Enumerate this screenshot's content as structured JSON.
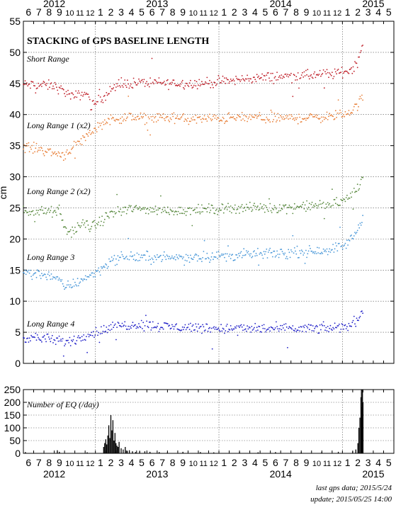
{
  "chart_data": [
    {
      "type": "scatter",
      "title": "STACKING of GPS BASELINE LENGTH",
      "ylabel": "cm",
      "ylim": [
        0,
        55
      ],
      "y_ticks": [
        0,
        5,
        10,
        15,
        20,
        25,
        30,
        35,
        40,
        45,
        50,
        55
      ],
      "x_range": [
        "2012-05",
        "2015-05"
      ],
      "month_labels": [
        "6",
        "7",
        "8",
        "9",
        "10",
        "11",
        "12",
        "1",
        "2",
        "3",
        "4",
        "5",
        "6",
        "7",
        "8",
        "9",
        "10",
        "11",
        "12",
        "1",
        "2",
        "3",
        "4",
        "5",
        "6",
        "7",
        "8",
        "9",
        "10",
        "11",
        "12",
        "1",
        "2",
        "3",
        "4",
        "5"
      ],
      "year_labels": [
        {
          "label": "2012",
          "month_index": 3
        },
        {
          "label": "2013",
          "month_index": 13
        },
        {
          "label": "2014",
          "month_index": 25
        },
        {
          "label": "2015",
          "month_index": 34
        }
      ],
      "year_boundaries": [
        7,
        19,
        31
      ],
      "grid": true,
      "series": [
        {
          "name": "Short Range",
          "color": "#c0202a",
          "anchors": [
            [
              0,
              44.8
            ],
            [
              2,
              44.7
            ],
            [
              3,
              44.6
            ],
            [
              4.2,
              43.5
            ],
            [
              4.8,
              42.8
            ],
            [
              5.5,
              43.2
            ],
            [
              6.2,
              43.5
            ],
            [
              6.6,
              41.3
            ],
            [
              7.5,
              42.5
            ],
            [
              8.5,
              44.0
            ],
            [
              10,
              45.0
            ],
            [
              12,
              45.2
            ],
            [
              14,
              45.0
            ],
            [
              16,
              45.0
            ],
            [
              18,
              45.1
            ],
            [
              20,
              45.4
            ],
            [
              22,
              45.8
            ],
            [
              24,
              46.0
            ],
            [
              26,
              46.2
            ],
            [
              28,
              46.3
            ],
            [
              30,
              46.5
            ],
            [
              31,
              46.8
            ],
            [
              31.8,
              47.2
            ],
            [
              32.5,
              48.5
            ],
            [
              33,
              51.5
            ]
          ]
        },
        {
          "name": "Long Range 1 (x2)",
          "color": "#e8803a",
          "anchors": [
            [
              0,
              34.8
            ],
            [
              1.5,
              34.5
            ],
            [
              3,
              33.8
            ],
            [
              4.0,
              33.5
            ],
            [
              5,
              35.0
            ],
            [
              6.5,
              37.0
            ],
            [
              7.5,
              38.5
            ],
            [
              8.5,
              39.2
            ],
            [
              10,
              39.5
            ],
            [
              12,
              39.4
            ],
            [
              14,
              39.5
            ],
            [
              16,
              39.2
            ],
            [
              18,
              39.3
            ],
            [
              20,
              39.4
            ],
            [
              22,
              39.5
            ],
            [
              24,
              39.4
            ],
            [
              26,
              39.4
            ],
            [
              28,
              39.5
            ],
            [
              30,
              39.7
            ],
            [
              31,
              40.0
            ],
            [
              31.8,
              40.5
            ],
            [
              32.5,
              41.5
            ],
            [
              33,
              43.0
            ]
          ]
        },
        {
          "name": "Long Range 2 (x2)",
          "color": "#5a8a40",
          "anchors": [
            [
              0,
              24.5
            ],
            [
              2,
              24.4
            ],
            [
              3.5,
              24.3
            ],
            [
              4.2,
              21.0
            ],
            [
              5,
              21.5
            ],
            [
              6,
              22.5
            ],
            [
              6.6,
              21.8
            ],
            [
              7.2,
              22.5
            ],
            [
              8.5,
              24.0
            ],
            [
              10,
              24.8
            ],
            [
              12,
              24.8
            ],
            [
              14,
              24.5
            ],
            [
              16,
              24.6
            ],
            [
              18,
              24.7
            ],
            [
              20,
              25.0
            ],
            [
              22,
              25.0
            ],
            [
              24,
              25.0
            ],
            [
              26,
              25.1
            ],
            [
              28,
              25.3
            ],
            [
              30,
              25.6
            ],
            [
              31,
              26.0
            ],
            [
              31.8,
              27.0
            ],
            [
              32.5,
              28.0
            ],
            [
              33,
              30.5
            ]
          ]
        },
        {
          "name": "Long Range 3",
          "color": "#4a98d8",
          "anchors": [
            [
              0,
              14.5
            ],
            [
              1.5,
              14.4
            ],
            [
              3,
              14.0
            ],
            [
              4.0,
              12.3
            ],
            [
              5,
              12.8
            ],
            [
              6,
              13.8
            ],
            [
              7,
              14.5
            ],
            [
              8.5,
              16.5
            ],
            [
              10,
              17.2
            ],
            [
              12,
              17.0
            ],
            [
              14,
              17.0
            ],
            [
              16,
              17.1
            ],
            [
              18,
              17.2
            ],
            [
              20,
              17.3
            ],
            [
              22,
              17.5
            ],
            [
              24,
              17.6
            ],
            [
              26,
              17.8
            ],
            [
              28,
              18.0
            ],
            [
              30,
              18.4
            ],
            [
              31,
              18.8
            ],
            [
              31.8,
              19.8
            ],
            [
              32.5,
              21.5
            ],
            [
              33,
              23.5
            ]
          ]
        },
        {
          "name": "Long Range 4",
          "color": "#2020c8",
          "anchors": [
            [
              0,
              4.2
            ],
            [
              2,
              4.0
            ],
            [
              3.5,
              3.5
            ],
            [
              4.5,
              3.5
            ],
            [
              6,
              4.5
            ],
            [
              7.5,
              5.2
            ],
            [
              9,
              6.0
            ],
            [
              11,
              6.3
            ],
            [
              13,
              6.0
            ],
            [
              15,
              5.8
            ],
            [
              17,
              5.8
            ],
            [
              19,
              5.6
            ],
            [
              21,
              5.6
            ],
            [
              23,
              5.6
            ],
            [
              25,
              5.5
            ],
            [
              27,
              5.6
            ],
            [
              29,
              5.6
            ],
            [
              31,
              5.8
            ],
            [
              31.8,
              6.2
            ],
            [
              32.5,
              7.2
            ],
            [
              33,
              8.5
            ]
          ]
        }
      ]
    },
    {
      "type": "bar",
      "title": "Number of EQ (/day)",
      "ylim": [
        0,
        250
      ],
      "y_ticks": [
        0,
        50,
        100,
        150,
        200,
        250
      ],
      "grid": true,
      "series": [
        {
          "name": "Number of EQ (/day)",
          "color": "#000000",
          "events": [
            [
              0.2,
              5
            ],
            [
              3.3,
              12
            ],
            [
              3.5,
              6
            ],
            [
              6.2,
              4
            ],
            [
              7.8,
              25
            ],
            [
              7.9,
              40
            ],
            [
              8.0,
              55
            ],
            [
              8.1,
              35
            ],
            [
              8.2,
              70
            ],
            [
              8.3,
              110
            ],
            [
              8.4,
              60
            ],
            [
              8.5,
              150
            ],
            [
              8.6,
              90
            ],
            [
              8.7,
              130
            ],
            [
              8.8,
              50
            ],
            [
              8.9,
              80
            ],
            [
              9.0,
              40
            ],
            [
              9.1,
              30
            ],
            [
              9.2,
              25
            ],
            [
              9.3,
              45
            ],
            [
              9.5,
              20
            ],
            [
              9.7,
              15
            ],
            [
              9.9,
              25
            ],
            [
              10.1,
              10
            ],
            [
              10.3,
              12
            ],
            [
              10.6,
              8
            ],
            [
              10.9,
              5
            ],
            [
              11.3,
              10
            ],
            [
              11.8,
              8
            ],
            [
              12.3,
              6
            ],
            [
              13.2,
              5
            ],
            [
              14.0,
              4
            ],
            [
              15.5,
              6
            ],
            [
              17.2,
              5
            ],
            [
              18.5,
              4
            ],
            [
              21.0,
              5
            ],
            [
              22.8,
              4
            ],
            [
              24.5,
              5
            ],
            [
              27.0,
              4
            ],
            [
              29.0,
              5
            ],
            [
              30.6,
              6
            ],
            [
              32.0,
              8
            ],
            [
              32.3,
              15
            ],
            [
              32.5,
              40
            ],
            [
              32.6,
              100
            ],
            [
              32.7,
              140
            ],
            [
              32.8,
              220
            ],
            [
              32.85,
              250
            ],
            [
              32.9,
              180
            ],
            [
              32.95,
              250
            ],
            [
              33.0,
              200
            ]
          ]
        }
      ]
    }
  ],
  "top_labels": [
    "Short Range",
    "Long Range 1 (x2)",
    "Long Range 2 (x2)",
    "Long Range 3",
    "Long Range 4"
  ],
  "footer": {
    "last_gps": "last gps data; 2015/5/24",
    "update": "update; 2015/05/25 14:00"
  }
}
